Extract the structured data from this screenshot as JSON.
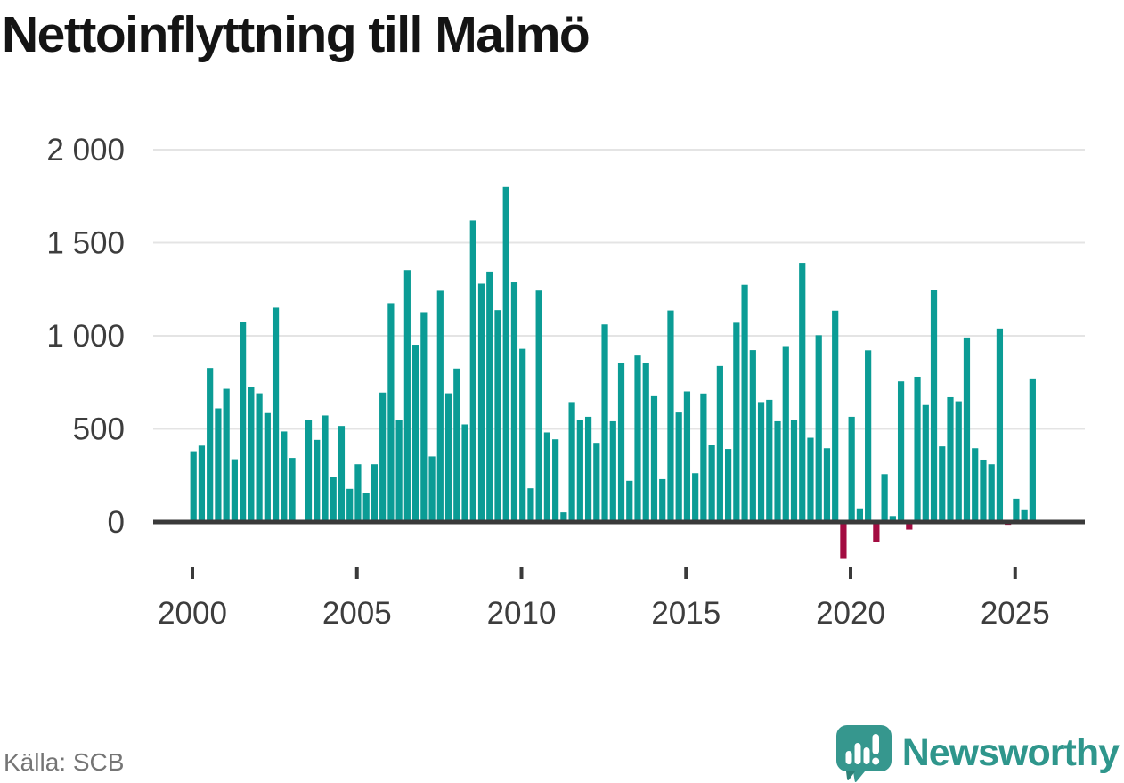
{
  "title": "Nettoinflyttning till Malmö",
  "source": "Källa: SCB",
  "branding": {
    "name": "Newsworthy",
    "logo_icon": "speech-bubble-bar-chart-exclamation"
  },
  "colors": {
    "bar_positive": "#0b9c95",
    "bar_negative": "#a30c41",
    "axis": "#3a3a3a",
    "grid": "#e4e4e4",
    "title_text": "#141414",
    "tick_text": "#3d3d3d",
    "source_text": "#757575",
    "brand_teal": "#2f968c",
    "background": "#ffffff"
  },
  "chart_data": {
    "type": "bar",
    "title": "Nettoinflyttning till Malmö",
    "xlabel": "",
    "ylabel": "",
    "grid": true,
    "legend": false,
    "ylim": [
      -250,
      2050
    ],
    "y_ticks": [
      0,
      500,
      1000,
      1500,
      2000
    ],
    "y_tick_labels": [
      "0",
      "500",
      "1 000",
      "1 500",
      "2 000"
    ],
    "x_ticks": [
      2000,
      2005,
      2010,
      2015,
      2020,
      2025
    ],
    "x_tick_labels": [
      "2000",
      "2005",
      "2010",
      "2015",
      "2020",
      "2025"
    ],
    "categories": [
      "2000 Q1",
      "2000 Q2",
      "2000 Q3",
      "2000 Q4",
      "2001 Q1",
      "2001 Q2",
      "2001 Q3",
      "2001 Q4",
      "2002 Q1",
      "2002 Q2",
      "2002 Q3",
      "2002 Q4",
      "2003 Q1",
      "2003 Q2",
      "2003 Q3",
      "2003 Q4",
      "2004 Q1",
      "2004 Q2",
      "2004 Q3",
      "2004 Q4",
      "2005 Q1",
      "2005 Q2",
      "2005 Q3",
      "2005 Q4",
      "2006 Q1",
      "2006 Q2",
      "2006 Q3",
      "2006 Q4",
      "2007 Q1",
      "2007 Q2",
      "2007 Q3",
      "2007 Q4",
      "2008 Q1",
      "2008 Q2",
      "2008 Q3",
      "2008 Q4",
      "2009 Q1",
      "2009 Q2",
      "2009 Q3",
      "2009 Q4",
      "2010 Q1",
      "2010 Q2",
      "2010 Q3",
      "2010 Q4",
      "2011 Q1",
      "2011 Q2",
      "2011 Q3",
      "2011 Q4",
      "2012 Q1",
      "2012 Q2",
      "2012 Q3",
      "2012 Q4",
      "2013 Q1",
      "2013 Q2",
      "2013 Q3",
      "2013 Q4",
      "2014 Q1",
      "2014 Q2",
      "2014 Q3",
      "2014 Q4",
      "2015 Q1",
      "2015 Q2",
      "2015 Q3",
      "2015 Q4",
      "2016 Q1",
      "2016 Q2",
      "2016 Q3",
      "2016 Q4",
      "2017 Q1",
      "2017 Q2",
      "2017 Q3",
      "2017 Q4",
      "2018 Q1",
      "2018 Q2",
      "2018 Q3",
      "2018 Q4",
      "2019 Q1",
      "2019 Q2",
      "2019 Q3",
      "2019 Q4",
      "2020 Q1",
      "2020 Q2",
      "2020 Q3",
      "2020 Q4",
      "2021 Q1",
      "2021 Q2",
      "2021 Q3",
      "2021 Q4",
      "2022 Q1",
      "2022 Q2",
      "2022 Q3",
      "2022 Q4",
      "2023 Q1",
      "2023 Q2",
      "2023 Q3",
      "2023 Q4",
      "2024 Q1",
      "2024 Q2",
      "2024 Q3",
      "2024 Q4",
      "2025 Q1",
      "2025 Q2",
      "2025 Q3"
    ],
    "values": [
      380,
      410,
      827,
      610,
      715,
      337,
      1074,
      723,
      691,
      585,
      1151,
      486,
      344,
      0,
      548,
      441,
      572,
      240,
      516,
      178,
      310,
      157,
      310,
      695,
      1175,
      550,
      1353,
      952,
      1127,
      352,
      1242,
      691,
      824,
      524,
      1620,
      1280,
      1345,
      1138,
      1800,
      1287,
      930,
      181,
      1243,
      481,
      444,
      52,
      644,
      549,
      565,
      425,
      1061,
      541,
      856,
      221,
      894,
      856,
      680,
      230,
      1136,
      588,
      701,
      262,
      690,
      412,
      838,
      392,
      1070,
      1274,
      923,
      644,
      656,
      541,
      945,
      548,
      1392,
      452,
      1003,
      396,
      1135,
      -194,
      565,
      73,
      922,
      -106,
      257,
      32,
      755,
      -41,
      780,
      628,
      1247,
      406,
      670,
      648,
      991,
      396,
      335,
      310,
      1039,
      -15,
      125,
      68,
      771
    ]
  }
}
